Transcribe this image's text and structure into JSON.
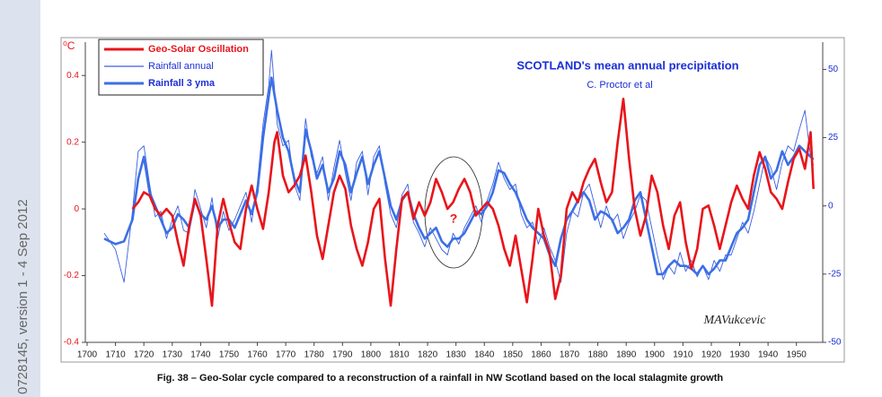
{
  "sidebar": "0728145, version 1 - 4 Sep 2012",
  "caption": "Fig. 38 – Geo-Solar cycle compared to a reconstruction of a rainfall in NW Scotland based on the local stalagmite growth",
  "chart_data": {
    "type": "line",
    "title": "SCOTLAND's mean annual precipitation",
    "subtitle": "C. Proctor et al",
    "y_label": "⁰C",
    "annotations": [
      "?",
      "MAVukcevic"
    ],
    "legend": "upper left",
    "grid": false,
    "xlim": [
      1700,
      1958
    ],
    "xticks": [
      1700,
      1710,
      1720,
      1730,
      1740,
      1750,
      1760,
      1770,
      1780,
      1790,
      1800,
      1810,
      1820,
      1830,
      1840,
      1850,
      1860,
      1870,
      1880,
      1890,
      1900,
      1910,
      1920,
      1930,
      1940,
      1950
    ],
    "ylim": [
      -0.4,
      0.5
    ],
    "yticks": [
      -0.4,
      -0.2,
      0,
      0.2,
      0.4
    ],
    "y2lim": [
      -50,
      60
    ],
    "y2ticks": [
      -50,
      -25,
      0,
      25,
      50
    ],
    "series": [
      {
        "name": "Geo-Solar Oscillation",
        "color": "#e8151b",
        "axis": "y",
        "x": [
          1716,
          1718,
          1720,
          1722,
          1724,
          1726,
          1728,
          1730,
          1732,
          1734,
          1736,
          1738,
          1740,
          1742,
          1744,
          1746,
          1748,
          1750,
          1752,
          1754,
          1756,
          1758,
          1760,
          1762,
          1764,
          1766,
          1767,
          1769,
          1771,
          1773,
          1775,
          1777,
          1779,
          1781,
          1783,
          1785,
          1787,
          1789,
          1791,
          1793,
          1795,
          1797,
          1799,
          1801,
          1803,
          1805,
          1807,
          1809,
          1811,
          1813,
          1815,
          1817,
          1819,
          1821,
          1823,
          1825,
          1827,
          1829,
          1831,
          1833,
          1835,
          1837,
          1839,
          1841,
          1843,
          1845,
          1847,
          1849,
          1851,
          1853,
          1855,
          1857,
          1859,
          1861,
          1863,
          1865,
          1867,
          1869,
          1871,
          1873,
          1875,
          1877,
          1879,
          1881,
          1883,
          1885,
          1887,
          1889,
          1891,
          1893,
          1895,
          1897,
          1899,
          1901,
          1903,
          1905,
          1907,
          1909,
          1911,
          1913,
          1915,
          1917,
          1919,
          1921,
          1923,
          1925,
          1927,
          1929,
          1931,
          1933,
          1935,
          1937,
          1939,
          1941,
          1943,
          1945,
          1947,
          1949,
          1951,
          1953,
          1955,
          1956
        ],
        "values": [
          0,
          0.02,
          0.05,
          0.04,
          0,
          -0.02,
          0,
          -0.02,
          -0.1,
          -0.17,
          -0.05,
          0.03,
          -0.02,
          -0.15,
          -0.29,
          -0.05,
          0.03,
          -0.04,
          -0.1,
          -0.12,
          0,
          0.07,
          0,
          -0.06,
          0.05,
          0.2,
          0.23,
          0.1,
          0.05,
          0.07,
          0.1,
          0.16,
          0.05,
          -0.08,
          -0.15,
          -0.05,
          0.05,
          0.1,
          0.06,
          -0.05,
          -0.12,
          -0.17,
          -0.1,
          0,
          0.03,
          -0.15,
          -0.29,
          -0.12,
          0.03,
          0.05,
          -0.03,
          0.02,
          -0.02,
          0.02,
          0.09,
          0.05,
          0,
          0.02,
          0.06,
          0.09,
          0.05,
          -0.02,
          0,
          0.02,
          0,
          -0.05,
          -0.12,
          -0.17,
          -0.08,
          -0.18,
          -0.28,
          -0.15,
          0,
          -0.08,
          -0.13,
          -0.27,
          -0.2,
          0,
          0.05,
          0.02,
          0.08,
          0.12,
          0.15,
          0.08,
          0.02,
          0.05,
          0.2,
          0.33,
          0.15,
          0,
          -0.08,
          -0.02,
          0.1,
          0.05,
          -0.05,
          -0.12,
          -0.02,
          0.02,
          -0.1,
          -0.18,
          -0.12,
          0,
          0.01,
          -0.05,
          -0.12,
          -0.05,
          0.02,
          0.07,
          0.03,
          0,
          0.1,
          0.17,
          0.12,
          0.05,
          0.03,
          0,
          0.08,
          0.15,
          0.18,
          0.12,
          0.23,
          0.06
        ]
      },
      {
        "name": "Rainfall annual",
        "color": "#3a5fe0",
        "axis": "y2",
        "x": [
          1706,
          1710,
          1713,
          1716,
          1718,
          1720,
          1722,
          1724,
          1726,
          1728,
          1730,
          1732,
          1734,
          1736,
          1738,
          1740,
          1742,
          1744,
          1746,
          1748,
          1750,
          1752,
          1754,
          1756,
          1758,
          1760,
          1762,
          1764,
          1765,
          1767,
          1769,
          1771,
          1773,
          1775,
          1777,
          1779,
          1781,
          1783,
          1785,
          1787,
          1789,
          1791,
          1793,
          1795,
          1797,
          1799,
          1801,
          1803,
          1805,
          1807,
          1809,
          1811,
          1813,
          1815,
          1817,
          1819,
          1821,
          1823,
          1825,
          1827,
          1829,
          1831,
          1833,
          1835,
          1837,
          1839,
          1841,
          1843,
          1845,
          1847,
          1849,
          1851,
          1853,
          1855,
          1857,
          1859,
          1861,
          1863,
          1865,
          1867,
          1869,
          1871,
          1873,
          1875,
          1877,
          1879,
          1881,
          1883,
          1885,
          1887,
          1889,
          1891,
          1893,
          1895,
          1897,
          1899,
          1901,
          1903,
          1905,
          1907,
          1909,
          1911,
          1913,
          1915,
          1917,
          1919,
          1921,
          1923,
          1925,
          1927,
          1929,
          1931,
          1933,
          1935,
          1937,
          1939,
          1941,
          1943,
          1945,
          1947,
          1949,
          1951,
          1953,
          1955,
          1956
        ],
        "values": [
          -10,
          -16,
          -28,
          -2,
          20,
          22,
          8,
          -4,
          -2,
          -12,
          -5,
          0,
          -9,
          -10,
          6,
          -1,
          -8,
          3,
          -12,
          -2,
          -9,
          -5,
          0,
          5,
          -6,
          8,
          30,
          44,
          57,
          30,
          22,
          24,
          8,
          2,
          32,
          18,
          12,
          18,
          2,
          14,
          24,
          12,
          2,
          16,
          20,
          4,
          18,
          22,
          8,
          -3,
          -8,
          4,
          8,
          -6,
          -10,
          -15,
          -8,
          -12,
          -16,
          -18,
          -10,
          -14,
          -8,
          -4,
          0,
          -6,
          2,
          8,
          16,
          10,
          6,
          8,
          -3,
          -8,
          -6,
          -14,
          -8,
          -15,
          -20,
          -28,
          -10,
          -2,
          -4,
          5,
          8,
          0,
          -8,
          0,
          -6,
          -3,
          -12,
          -6,
          -2,
          4,
          2,
          -8,
          -18,
          -27,
          -22,
          -25,
          -17,
          -24,
          -20,
          -26,
          -22,
          -27,
          -20,
          -24,
          -18,
          -18,
          -12,
          -6,
          -10,
          -2,
          8,
          18,
          14,
          6,
          16,
          22,
          20,
          28,
          35,
          18,
          15
        ]
      },
      {
        "name": "Rainfall 3 yma",
        "color": "#3b6fe6",
        "axis": "y2",
        "x": [
          1706,
          1710,
          1713,
          1716,
          1718,
          1720,
          1722,
          1724,
          1726,
          1728,
          1730,
          1732,
          1734,
          1736,
          1738,
          1740,
          1742,
          1744,
          1746,
          1748,
          1750,
          1752,
          1754,
          1756,
          1758,
          1760,
          1762,
          1764,
          1765,
          1767,
          1769,
          1771,
          1773,
          1775,
          1777,
          1779,
          1781,
          1783,
          1785,
          1787,
          1789,
          1791,
          1793,
          1795,
          1797,
          1799,
          1801,
          1803,
          1805,
          1807,
          1809,
          1811,
          1813,
          1815,
          1817,
          1819,
          1821,
          1823,
          1825,
          1827,
          1829,
          1831,
          1833,
          1835,
          1837,
          1839,
          1841,
          1843,
          1845,
          1847,
          1849,
          1851,
          1853,
          1855,
          1857,
          1859,
          1861,
          1863,
          1865,
          1867,
          1869,
          1871,
          1873,
          1875,
          1877,
          1879,
          1881,
          1883,
          1885,
          1887,
          1889,
          1891,
          1893,
          1895,
          1897,
          1899,
          1901,
          1903,
          1905,
          1907,
          1909,
          1911,
          1913,
          1915,
          1917,
          1919,
          1921,
          1923,
          1925,
          1927,
          1929,
          1931,
          1933,
          1935,
          1937,
          1939,
          1941,
          1943,
          1945,
          1947,
          1949,
          1951,
          1953,
          1955,
          1956
        ],
        "values": [
          -12,
          -14,
          -13,
          -5,
          10,
          18,
          5,
          0,
          -5,
          -10,
          -8,
          -3,
          -5,
          -8,
          2,
          -3,
          -5,
          0,
          -8,
          -5,
          -5,
          -8,
          -3,
          2,
          -3,
          5,
          25,
          40,
          47,
          35,
          25,
          20,
          10,
          5,
          28,
          20,
          10,
          15,
          5,
          10,
          20,
          15,
          5,
          12,
          18,
          8,
          15,
          20,
          10,
          0,
          -5,
          2,
          5,
          -3,
          -8,
          -12,
          -10,
          -8,
          -13,
          -15,
          -12,
          -12,
          -10,
          -6,
          -2,
          -3,
          0,
          5,
          13,
          12,
          8,
          5,
          0,
          -5,
          -8,
          -10,
          -12,
          -18,
          -22,
          -12,
          -5,
          -2,
          2,
          5,
          2,
          -5,
          -2,
          -3,
          -5,
          -10,
          -8,
          -5,
          2,
          5,
          -5,
          -15,
          -25,
          -25,
          -22,
          -20,
          -22,
          -22,
          -23,
          -25,
          -22,
          -25,
          -23,
          -20,
          -20,
          -15,
          -10,
          -8,
          -5,
          5,
          15,
          18,
          10,
          13,
          20,
          15,
          18,
          22,
          20,
          18,
          17
        ]
      }
    ]
  }
}
